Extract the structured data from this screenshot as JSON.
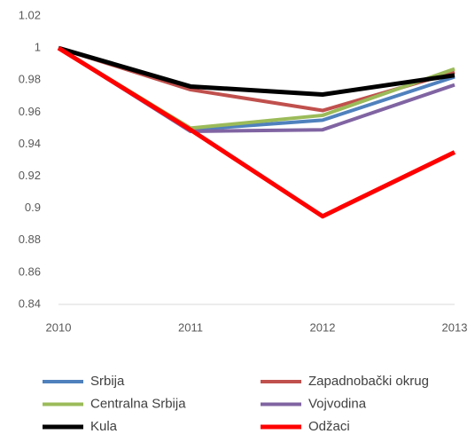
{
  "chart_data": {
    "type": "line",
    "categories": [
      "2010",
      "2011",
      "2012",
      "2013"
    ],
    "series": [
      {
        "name": "Srbija",
        "color": "#4f81bd",
        "values": [
          1,
          0.949,
          0.955,
          0.982
        ]
      },
      {
        "name": "Zapadnobački okrug",
        "color": "#c0504d",
        "values": [
          1,
          0.974,
          0.961,
          0.985
        ]
      },
      {
        "name": "Centralna Srbija",
        "color": "#9bbb59",
        "values": [
          1,
          0.95,
          0.958,
          0.987
        ]
      },
      {
        "name": "Vojvodina",
        "color": "#8064a2",
        "values": [
          1,
          0.948,
          0.949,
          0.977
        ]
      },
      {
        "name": "Kula",
        "color": "#000000",
        "values": [
          1,
          0.976,
          0.971,
          0.983
        ]
      },
      {
        "name": "Odžaci",
        "color": "#ff0000",
        "values": [
          1,
          0.949,
          0.895,
          0.935
        ]
      }
    ],
    "ylim": [
      0.84,
      1.02
    ],
    "yticks": [
      0.84,
      0.86,
      0.88,
      0.9,
      0.92,
      0.94,
      0.96,
      0.98,
      1,
      1.02
    ],
    "grid": false,
    "legend": "bottom"
  }
}
